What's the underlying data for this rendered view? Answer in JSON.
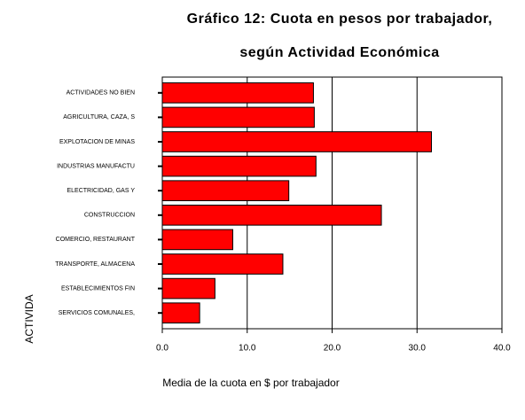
{
  "chart_data": {
    "type": "bar",
    "orientation": "horizontal",
    "title": "Gráfico 12: Cuota en pesos por trabajador,",
    "subtitle": "según Actividad Económica",
    "x_label": "Media de la cuota en $ por trabajador",
    "y_label": "ACTIVIDA",
    "categories": [
      "ACTIVIDADES NO BIEN",
      "AGRICULTURA, CAZA, S",
      "EXPLOTACION DE MINAS",
      "INDUSTRIAS MANUFACTU",
      "ELECTRICIDAD, GAS Y",
      "CONSTRUCCION",
      "COMERCIO, RESTAURANT",
      "TRANSPORTE, ALMACENA",
      "ESTABLECIMIENTOS FIN",
      "SERVICIOS COMUNALES,"
    ],
    "values": [
      17.8,
      17.9,
      31.7,
      18.1,
      14.9,
      25.8,
      8.3,
      14.2,
      6.2,
      4.4
    ],
    "color": "#ff0000",
    "xlim": [
      0,
      40
    ],
    "xticks": [
      {
        "value": 0,
        "label": "0.0"
      },
      {
        "value": 10,
        "label": "10.0"
      },
      {
        "value": 20,
        "label": "20.0"
      },
      {
        "value": 30,
        "label": "30.0"
      },
      {
        "value": 40,
        "label": "40.0"
      }
    ],
    "grid": true
  }
}
